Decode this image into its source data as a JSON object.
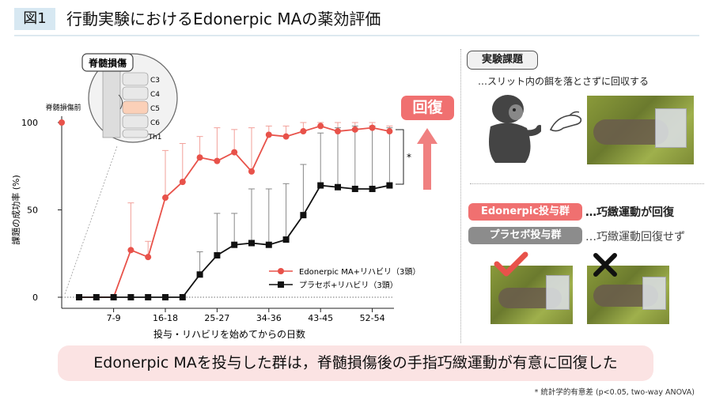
{
  "header": {
    "figure_label": "図1",
    "title": "行動実験におけるEdonerpic MAの薬効評価"
  },
  "chart_data": {
    "type": "line",
    "xlabel": "投与・リハビリを始めてからの日数",
    "ylabel": "課題の成功率 (%)",
    "ylim": [
      0,
      100
    ],
    "yticks": [
      0,
      50,
      100
    ],
    "xtick_labels": [
      "7-9",
      "16-18",
      "25-27",
      "34-36",
      "43-45",
      "52-54"
    ],
    "x": [
      1,
      2,
      3,
      4,
      5,
      6,
      7,
      8,
      9,
      10,
      11,
      12,
      13,
      14,
      15,
      16,
      17,
      18,
      19
    ],
    "baseline_label": "脊髄損傷前",
    "baseline_value": 100,
    "series": [
      {
        "name": "Edonerpic MA+リハビリ（3頭）",
        "color": "#e8524a",
        "marker": "circle",
        "values": [
          0,
          0,
          0,
          27,
          23,
          57,
          66,
          80,
          78,
          83,
          72,
          93,
          92,
          95,
          98,
          95,
          96,
          97,
          95
        ],
        "err": [
          0,
          0,
          0,
          27,
          9,
          27,
          22,
          12,
          19,
          13,
          25,
          5,
          6,
          5,
          2,
          5,
          4,
          3,
          3
        ]
      },
      {
        "name": "プラセボ+リハビリ（3頭）",
        "color": "#111111",
        "marker": "square",
        "values": [
          0,
          0,
          0,
          0,
          0,
          0,
          0,
          13,
          24,
          30,
          31,
          30,
          33,
          47,
          64,
          63,
          62,
          62,
          64
        ],
        "err": [
          0,
          0,
          0,
          0,
          0,
          0,
          0,
          13,
          24,
          18,
          31,
          32,
          32,
          29,
          30,
          34,
          36,
          36,
          33
        ]
      }
    ],
    "significance_marker": "*",
    "spine_label": "脊髄損傷",
    "spine_levels": [
      "C3",
      "C4",
      "C5",
      "C6",
      "Th1"
    ]
  },
  "recover_label": "回復",
  "task": {
    "tag": "実験課題",
    "description": "…スリット内の餌を落とさずに回収する"
  },
  "groups": {
    "drug": {
      "label": "Edonerpic投与群",
      "desc": "…巧緻運動が回復",
      "color": "#f07070"
    },
    "placebo": {
      "label": "プラセボ投与群",
      "desc": "…巧緻運動回復せず",
      "color": "#8c8c8c"
    }
  },
  "conclusion": "Edonerpic MAを投与した群は，脊髄損傷後の手指巧緻運動が有意に回復した",
  "footnote": "* 統計学的有意差 (p<0.05, two-way ANOVA)"
}
